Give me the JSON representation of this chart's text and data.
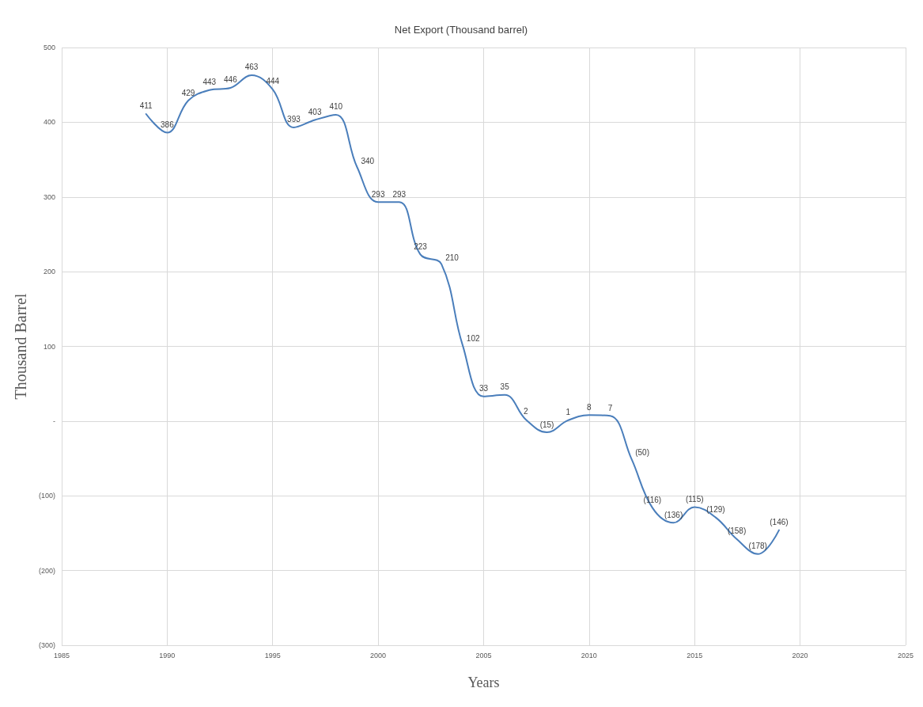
{
  "chart_data": {
    "type": "line",
    "title": "Net Export (Thousand barrel)",
    "xlabel": "Years",
    "ylabel": "Thousand Barrel",
    "x": [
      1989,
      1990,
      1991,
      1992,
      1993,
      1994,
      1995,
      1996,
      1997,
      1998,
      1999,
      2000,
      2001,
      2002,
      2003,
      2004,
      2005,
      2006,
      2007,
      2008,
      2009,
      2010,
      2011,
      2012,
      2013,
      2014,
      2015,
      2016,
      2017,
      2018,
      2019
    ],
    "series": [
      {
        "color": "#4a7ebb",
        "values": [
          411,
          386,
          429,
          443,
          446,
          463,
          444,
          393,
          403,
          410,
          340,
          293,
          293,
          223,
          210,
          102,
          33,
          35,
          2,
          -15,
          1,
          8,
          7,
          -50,
          -116,
          -136,
          -115,
          -129,
          -158,
          -178,
          -146
        ],
        "value_labels": [
          "411",
          "386",
          "429",
          "443",
          "446",
          "463",
          "444",
          "393",
          "403",
          "410",
          "340",
          "293",
          "293",
          "223",
          "210",
          "102",
          "33",
          "35",
          "2",
          "(15)",
          "1",
          "8",
          "7",
          "(50)",
          "(116)",
          "(136)",
          "(115)",
          "(129)",
          "(158)",
          "(178)",
          "(146)"
        ]
      }
    ],
    "xlim": [
      1985,
      2025
    ],
    "xticks": [
      1985,
      1990,
      1995,
      2000,
      2005,
      2010,
      2015,
      2020,
      2025
    ],
    "ylim": [
      -300,
      500
    ],
    "yticks": [
      {
        "value": -300,
        "label": "(300)"
      },
      {
        "value": -200,
        "label": "(200)"
      },
      {
        "value": -100,
        "label": "(100)"
      },
      {
        "value": 0,
        "label": "-"
      },
      100,
      200,
      300,
      400,
      500
    ],
    "grid": true,
    "marker": "none",
    "line_style": "solid"
  }
}
